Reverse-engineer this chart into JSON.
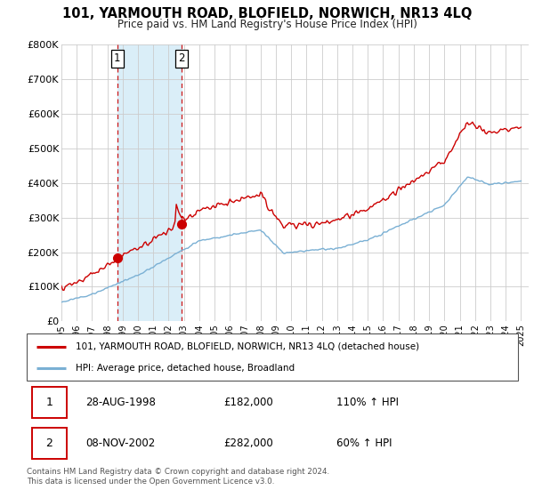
{
  "title": "101, YARMOUTH ROAD, BLOFIELD, NORWICH, NR13 4LQ",
  "subtitle": "Price paid vs. HM Land Registry's House Price Index (HPI)",
  "legend_line1": "101, YARMOUTH ROAD, BLOFIELD, NORWICH, NR13 4LQ (detached house)",
  "legend_line2": "HPI: Average price, detached house, Broadland",
  "footer": "Contains HM Land Registry data © Crown copyright and database right 2024.\nThis data is licensed under the Open Government Licence v3.0.",
  "transaction1_date": "28-AUG-1998",
  "transaction1_price": "£182,000",
  "transaction1_hpi": "110% ↑ HPI",
  "transaction1_year": 1998.65,
  "transaction1_value": 182000,
  "transaction2_date": "08-NOV-2002",
  "transaction2_price": "£282,000",
  "transaction2_hpi": "60% ↑ HPI",
  "transaction2_year": 2002.85,
  "transaction2_value": 282000,
  "highlight_color": "#daeef8",
  "red_color": "#cc0000",
  "blue_color": "#7ab0d4",
  "dashed_color": "#cc0000",
  "ylim": [
    0,
    800000
  ],
  "xlim_start": 1995.0,
  "xlim_end": 2025.5,
  "yticks": [
    0,
    100000,
    200000,
    300000,
    400000,
    500000,
    600000,
    700000,
    800000
  ],
  "ytick_labels": [
    "£0",
    "£100K",
    "£200K",
    "£300K",
    "£400K",
    "£500K",
    "£600K",
    "£700K",
    "£800K"
  ],
  "xtick_years": [
    1995,
    1996,
    1997,
    1998,
    1999,
    2000,
    2001,
    2002,
    2003,
    2004,
    2005,
    2006,
    2007,
    2008,
    2009,
    2010,
    2011,
    2012,
    2013,
    2014,
    2015,
    2016,
    2017,
    2018,
    2019,
    2020,
    2021,
    2022,
    2023,
    2024,
    2025
  ]
}
